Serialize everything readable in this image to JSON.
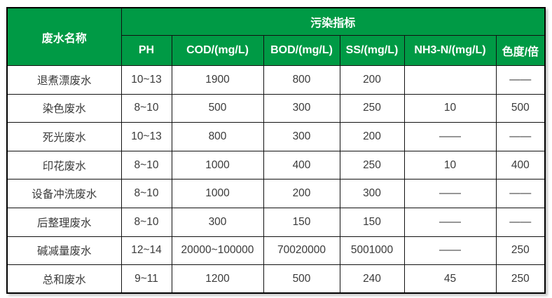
{
  "table": {
    "name_header": "废水名称",
    "group_header": "污染指标",
    "columns": {
      "ph": "PH",
      "cod": "COD/(mg/L)",
      "bod": "BOD/(mg/L)",
      "ss": "SS/(mg/L)",
      "nh3n": "NH3-N/(mg/L)",
      "chroma": "色度/倍"
    },
    "rows": [
      {
        "name": "退煮漂废水",
        "ph": "10~13",
        "cod": "1900",
        "bod": "800",
        "ss": "200",
        "nh3n": "",
        "chroma": "——"
      },
      {
        "name": "染色废水",
        "ph": "8~10",
        "cod": "500",
        "bod": "300",
        "ss": "250",
        "nh3n": "10",
        "chroma": "500"
      },
      {
        "name": "死光废水",
        "ph": "10~13",
        "cod": "800",
        "bod": "300",
        "ss": "200",
        "nh3n": "——",
        "chroma": "——"
      },
      {
        "name": "印花废水",
        "ph": "8~10",
        "cod": "1000",
        "bod": "400",
        "ss": "250",
        "nh3n": "10",
        "chroma": "400"
      },
      {
        "name": "设备冲洗废水",
        "ph": "8~10",
        "cod": "1000",
        "bod": "200",
        "ss": "300",
        "nh3n": "——",
        "chroma": "——"
      },
      {
        "name": "后整理废水",
        "ph": "8~10",
        "cod": "300",
        "bod": "150",
        "ss": "150",
        "nh3n": "——",
        "chroma": "——"
      },
      {
        "name": "碱减量废水",
        "ph": "12~14",
        "cod": "20000~100000",
        "bod": "70020000",
        "ss": "5001000",
        "nh3n": "——",
        "chroma": "250"
      },
      {
        "name": "总和废水",
        "ph": "9~11",
        "cod": "1200",
        "bod": "500",
        "ss": "240",
        "nh3n": "45",
        "chroma": "250"
      }
    ],
    "colors": {
      "header_green": "#009a45",
      "header_text": "#ffffff",
      "body_text": "#3a3a3a",
      "border": "#111111"
    }
  }
}
